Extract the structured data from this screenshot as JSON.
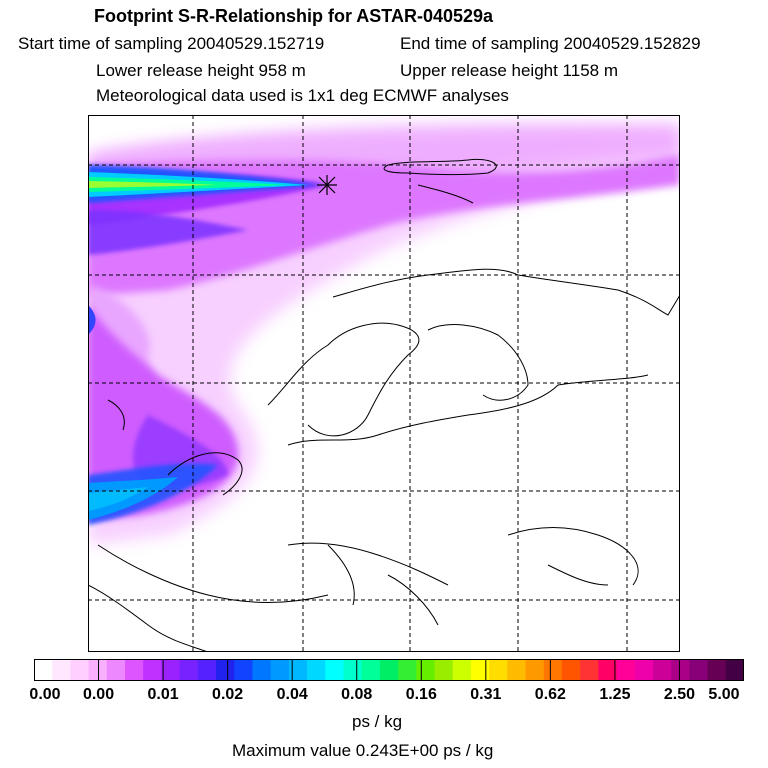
{
  "header": {
    "title": "Footprint S-R-Relationship for ASTAR-040529a",
    "start_time": "Start time of sampling 20040529.152719",
    "end_time": "End time of sampling 20040529.152829",
    "lower_height": "Lower release height  958 m",
    "upper_height": "Upper release height 1158 m",
    "met_data": "Meteorological data used is 1x1 deg ECMWF analyses"
  },
  "colorbar": {
    "labels": [
      "0.00",
      "0.00",
      "0.01",
      "0.02",
      "0.04",
      "0.08",
      "0.16",
      "0.31",
      "0.62",
      "1.25",
      "2.50",
      "5.00"
    ],
    "colors": [
      "#ffffff",
      "#ffe8ff",
      "#ffd0ff",
      "#f8b0ff",
      "#ee88ff",
      "#dd55ff",
      "#c030ff",
      "#9922ff",
      "#7722ff",
      "#5522ff",
      "#2222ee",
      "#1144ff",
      "#0077ff",
      "#0099ff",
      "#00b8ff",
      "#00d8ff",
      "#00ffff",
      "#00ffcc",
      "#00ff99",
      "#00ee66",
      "#33ee33",
      "#66ee00",
      "#99ee00",
      "#ccff00",
      "#ffff00",
      "#ffdd00",
      "#ffbb00",
      "#ff9900",
      "#ff7700",
      "#ff5500",
      "#ff3333",
      "#ff0066",
      "#ff0099",
      "#ee00aa",
      "#cc0099",
      "#aa0088",
      "#880077",
      "#660055",
      "#440044"
    ],
    "unit": "ps / kg"
  },
  "footer": {
    "max_value": "Maximum value  0.243E+00 ps / kg"
  }
}
